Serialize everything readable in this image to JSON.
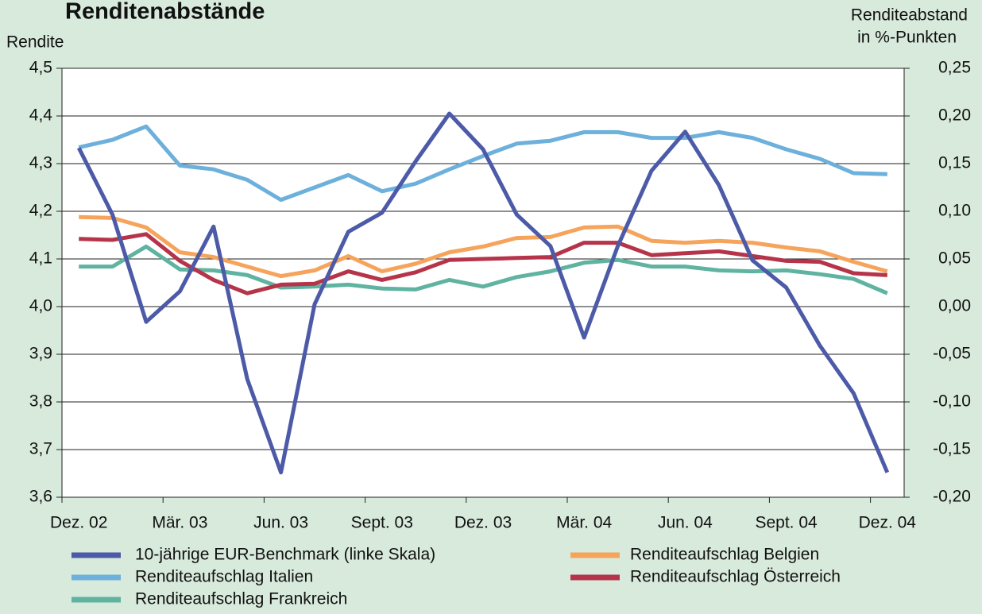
{
  "chart_data": {
    "type": "line",
    "title": "Renditenabstände",
    "ylabel": "Rendite",
    "y2label": [
      "Renditeabstand",
      "in %-Punkten"
    ],
    "categories": [
      "Dez. 02",
      null,
      null,
      "Mär. 03",
      null,
      null,
      "Jun. 03",
      null,
      null,
      "Sept. 03",
      null,
      null,
      "Dez. 03",
      null,
      null,
      "Mär. 04",
      null,
      null,
      "Jun. 04",
      null,
      null,
      "Sept. 04",
      null,
      null,
      "Dez. 04"
    ],
    "ylim": [
      3.6,
      4.5
    ],
    "yticks": [
      {
        "value": 3.6,
        "label": "3,6"
      },
      {
        "value": 3.7,
        "label": "3,7"
      },
      {
        "value": 3.8,
        "label": "3,8"
      },
      {
        "value": 3.9,
        "label": "3,9"
      },
      {
        "value": 4.0,
        "label": "4,0"
      },
      {
        "value": 4.1,
        "label": "4,1"
      },
      {
        "value": 4.2,
        "label": "4,2"
      },
      {
        "value": 4.3,
        "label": "4,3"
      },
      {
        "value": 4.4,
        "label": "4,4"
      },
      {
        "value": 4.5,
        "label": "4,5"
      }
    ],
    "y2lim": [
      -0.2,
      0.25
    ],
    "y2ticks": [
      {
        "value": -0.2,
        "label": "-0,20"
      },
      {
        "value": -0.15,
        "label": "-0,15"
      },
      {
        "value": -0.1,
        "label": "-0,10"
      },
      {
        "value": -0.05,
        "label": "-0,05"
      },
      {
        "value": 0,
        "label": "0,00"
      },
      {
        "value": 0.05,
        "label": "0,05"
      },
      {
        "value": 0.1,
        "label": "0,10"
      },
      {
        "value": 0.15,
        "label": "0,15"
      },
      {
        "value": 0.2,
        "label": "0,20"
      },
      {
        "value": 0.25,
        "label": "0,25"
      }
    ],
    "grid": true,
    "series": [
      {
        "name": "10-jährige EUR-Benchmark (linke Skala)",
        "color": "#4c5aa8",
        "axis": "y",
        "values": [
          4.333,
          4.193,
          3.968,
          4.032,
          4.168,
          3.848,
          3.652,
          4.005,
          4.157,
          4.197,
          4.305,
          4.405,
          4.33,
          4.193,
          4.127,
          3.935,
          4.127,
          4.285,
          4.367,
          4.255,
          4.097,
          4.04,
          3.918,
          3.818,
          3.652
        ]
      },
      {
        "name": "Renditeaufschlag Italien",
        "color": "#6cb0db",
        "axis": "y2",
        "values": [
          0.167,
          0.175,
          0.189,
          0.148,
          0.144,
          0.133,
          0.112,
          0.125,
          0.138,
          0.121,
          0.129,
          0.144,
          0.158,
          0.171,
          0.174,
          0.183,
          0.183,
          0.177,
          0.177,
          0.183,
          0.177,
          0.165,
          0.155,
          0.14,
          0.139
        ]
      },
      {
        "name": "Renditeaufschlag Frankreich",
        "color": "#5fb3a0",
        "axis": "y2",
        "values": [
          0.042,
          0.042,
          0.063,
          0.039,
          0.038,
          0.033,
          0.02,
          0.021,
          0.023,
          0.019,
          0.018,
          0.028,
          0.021,
          0.031,
          0.037,
          0.046,
          0.049,
          0.042,
          0.042,
          0.038,
          0.037,
          0.038,
          0.034,
          0.029,
          0.014
        ]
      },
      {
        "name": "Renditeaufschlag Belgien",
        "color": "#f6a45c",
        "axis": "y2",
        "values": [
          0.094,
          0.093,
          0.083,
          0.057,
          0.052,
          0.042,
          0.032,
          0.038,
          0.053,
          0.037,
          0.045,
          0.057,
          0.063,
          0.072,
          0.073,
          0.083,
          0.084,
          0.069,
          0.067,
          0.069,
          0.067,
          0.062,
          0.058,
          0.047,
          0.037
        ]
      },
      {
        "name": "Renditeaufschlag Österreich",
        "color": "#b5344a",
        "axis": "y2",
        "values": [
          0.071,
          0.07,
          0.076,
          0.048,
          0.028,
          0.014,
          0.023,
          0.024,
          0.037,
          0.028,
          0.036,
          0.049,
          0.05,
          0.051,
          0.052,
          0.067,
          0.067,
          0.054,
          0.056,
          0.058,
          0.053,
          0.048,
          0.047,
          0.035,
          0.033
        ]
      }
    ]
  }
}
